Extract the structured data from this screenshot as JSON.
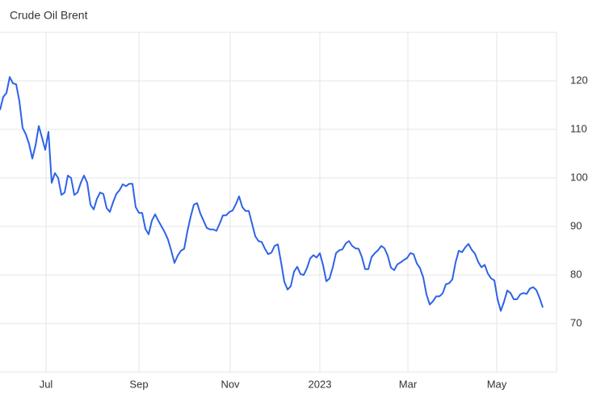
{
  "chart_data": {
    "type": "line",
    "title": "Crude Oil Brent",
    "color": "#2e62e8",
    "grid": true,
    "values": [
      114,
      116.7,
      117.5,
      120.8,
      119.5,
      119.3,
      115.8,
      110.3,
      109,
      107,
      104,
      106.7,
      110.7,
      108.3,
      105.8,
      109.5,
      99,
      101,
      100,
      96.5,
      97,
      100.5,
      100,
      96.5,
      97,
      99,
      100.5,
      99,
      94.5,
      93.5,
      95.7,
      97,
      96.7,
      93.8,
      93,
      95,
      96.7,
      97.5,
      98.7,
      98.3,
      98.8,
      98.8,
      94,
      92.8,
      92.8,
      89.5,
      88.4,
      91.2,
      92.5,
      91.2,
      90,
      88.8,
      87.3,
      85,
      82.5,
      84,
      85,
      85.4,
      89,
      92,
      94.5,
      94.8,
      92.7,
      91.2,
      89.7,
      89.4,
      89.4,
      89.1,
      90.6,
      92.3,
      92.3,
      93,
      93.3,
      94.6,
      96.2,
      94,
      93.2,
      93.2,
      90.6,
      88,
      87,
      86.8,
      85.4,
      84.3,
      84.6,
      86,
      86.3,
      82.6,
      78.6,
      77,
      77.7,
      80.7,
      81.7,
      80.2,
      80,
      81.4,
      83.4,
      84.1,
      83.6,
      84.5,
      82,
      78.7,
      79.3,
      81.6,
      84.5,
      85.1,
      85.3,
      86.5,
      87,
      86,
      85.5,
      85.4,
      83.7,
      81.2,
      81.2,
      83.7,
      84.5,
      85.1,
      86,
      85.5,
      84,
      81.5,
      81,
      82.2,
      82.6,
      83.1,
      83.5,
      84.5,
      84.3,
      82.4,
      81.4,
      79.5,
      76,
      73.9,
      74.6,
      75.6,
      75.6,
      76.2,
      78.1,
      78.3,
      79.1,
      82.6,
      85,
      84.7,
      85.7,
      86.4,
      85.2,
      84.4,
      82.7,
      81.6,
      82.1,
      80.3,
      79.3,
      78.9,
      75,
      72.6,
      74.5,
      76.8,
      76.3,
      75,
      75,
      76,
      76.3,
      76.1,
      77.2,
      77.5,
      76.9,
      75.3,
      73.3
    ],
    "xlim": [
      0,
      172.25
    ],
    "xticks": [
      {
        "value": 14.25,
        "label": "Jul"
      },
      {
        "value": 43,
        "label": "Sep"
      },
      {
        "value": 71.25,
        "label": "Nov"
      },
      {
        "value": 99,
        "label": "2023"
      },
      {
        "value": 126.25,
        "label": "Mar"
      },
      {
        "value": 153.75,
        "label": "May"
      }
    ],
    "ylim": [
      60,
      130
    ],
    "yticks": [
      70,
      80,
      90,
      100,
      110,
      120
    ]
  }
}
